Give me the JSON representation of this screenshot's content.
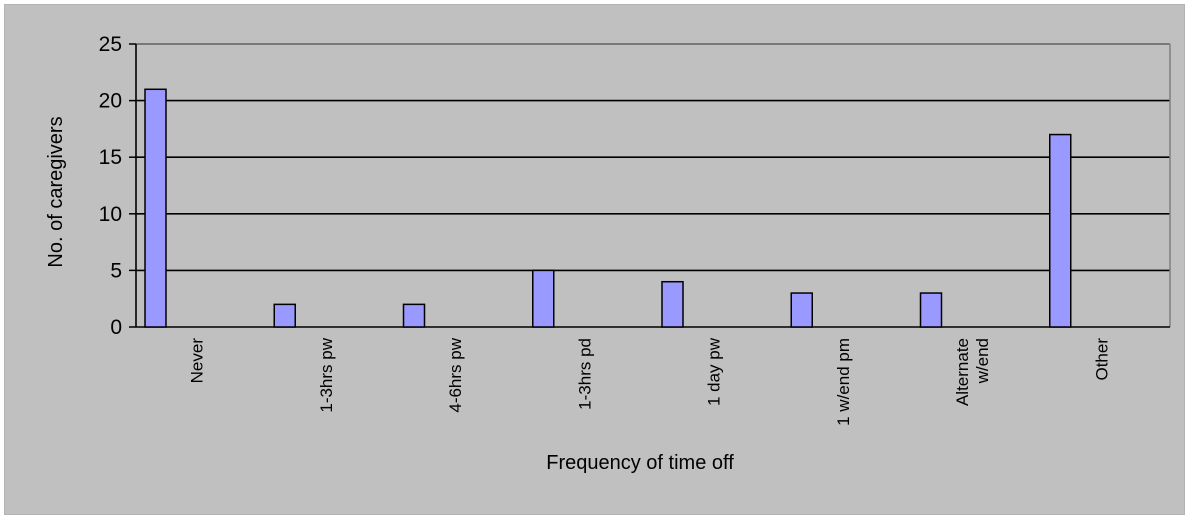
{
  "chart_data": {
    "type": "bar",
    "categories": [
      [
        "Never"
      ],
      [
        "1-3hrs pw"
      ],
      [
        "4-6hrs pw"
      ],
      [
        "1-3hrs pd"
      ],
      [
        "1 day pw"
      ],
      [
        "1 w/end pm"
      ],
      [
        "Alternate",
        "w/end"
      ],
      [
        "Other"
      ]
    ],
    "values": [
      21,
      2,
      2,
      5,
      4,
      3,
      3,
      17
    ],
    "xlabel": "Frequency of time off",
    "ylabel": "No. of caregivers",
    "ylim": [
      0,
      25
    ],
    "yticks": [
      0,
      5,
      10,
      15,
      20,
      25
    ],
    "grid": true,
    "colors": {
      "bar_fill": "#9999ff",
      "bar_stroke": "#000000",
      "plot_bg": "#c0c0c0",
      "gridline": "#000000"
    }
  }
}
